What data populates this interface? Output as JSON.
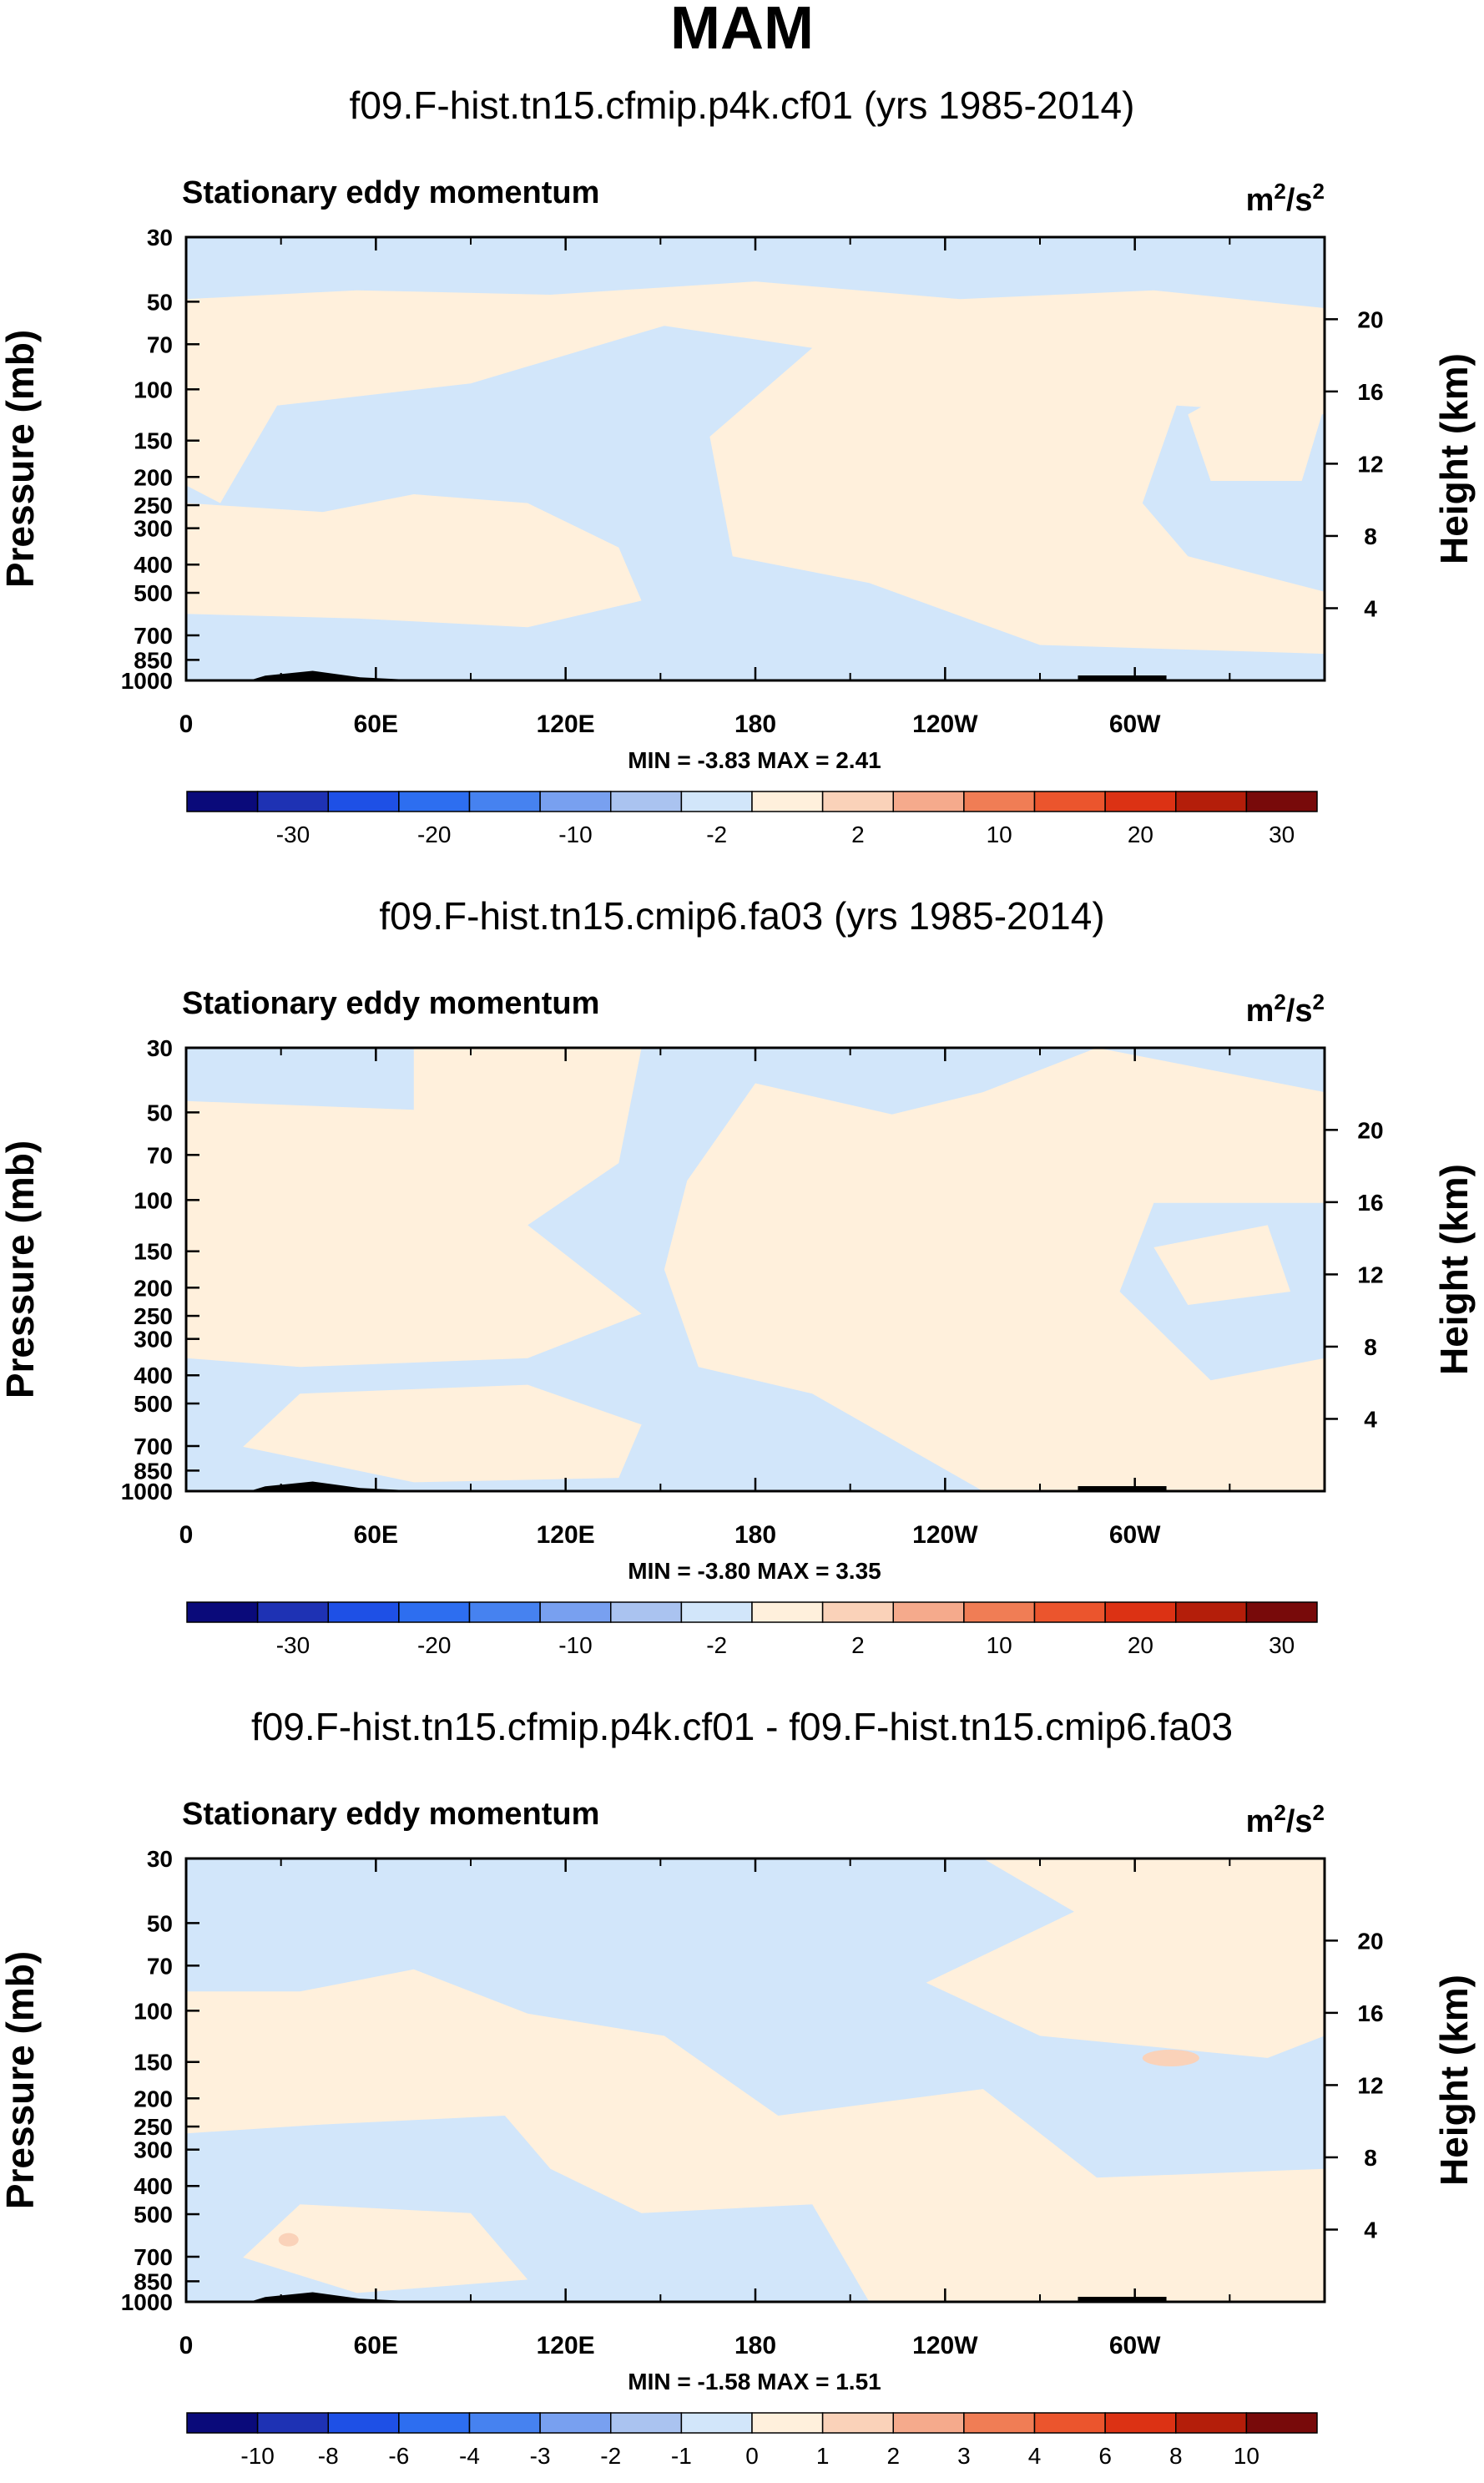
{
  "figure_title": "MAM",
  "chart_data": [
    {
      "type": "heatmap",
      "title": "f09.F-hist.tn15.cfmip.p4k.cf01 (yrs 1985-2014)",
      "left_label": "Stationary eddy momentum",
      "units_base": "m",
      "units_sup1": "2",
      "units_mid": "/s",
      "units_sup2": "2",
      "ylabel": "Pressure (mb)",
      "y2label": "Height (km)",
      "x_ticks": [
        {
          "lon": 0,
          "label": "0"
        },
        {
          "lon": 60,
          "label": "60E"
        },
        {
          "lon": 120,
          "label": "120E"
        },
        {
          "lon": 180,
          "label": "180"
        },
        {
          "lon": 240,
          "label": "120W"
        },
        {
          "lon": 300,
          "label": "60W"
        }
      ],
      "xlim": [
        0,
        360
      ],
      "y_ticks": [
        30,
        50,
        70,
        100,
        150,
        200,
        250,
        300,
        400,
        500,
        700,
        850,
        1000
      ],
      "ylim": [
        1000,
        30
      ],
      "y2_ticks": [
        4,
        8,
        12,
        16,
        20
      ],
      "stats": "MIN =  -3.83  MAX =   2.41",
      "colorbar": {
        "labels": [
          "-30",
          "-20",
          "-10",
          "-2",
          "2",
          "10",
          "20",
          "30"
        ],
        "colors": [
          "#0a0a7a",
          "#1e32b4",
          "#1e50e6",
          "#2d6ef0",
          "#4682f0",
          "#78a0f0",
          "#aac3f0",
          "#d2e6fa",
          "#fff0dc",
          "#fad2b9",
          "#f5aa8c",
          "#f07d55",
          "#eb552d",
          "#dc3214",
          "#b41e0a",
          "#780a0a"
        ]
      }
    },
    {
      "type": "heatmap",
      "title": "f09.F-hist.tn15.cmip6.fa03 (yrs 1985-2014)",
      "left_label": "Stationary eddy momentum",
      "units_base": "m",
      "units_sup1": "2",
      "units_mid": "/s",
      "units_sup2": "2",
      "ylabel": "Pressure (mb)",
      "y2label": "Height (km)",
      "x_ticks": [
        {
          "lon": 0,
          "label": "0"
        },
        {
          "lon": 60,
          "label": "60E"
        },
        {
          "lon": 120,
          "label": "120E"
        },
        {
          "lon": 180,
          "label": "180"
        },
        {
          "lon": 240,
          "label": "120W"
        },
        {
          "lon": 300,
          "label": "60W"
        }
      ],
      "xlim": [
        0,
        360
      ],
      "y_ticks": [
        30,
        50,
        70,
        100,
        150,
        200,
        250,
        300,
        400,
        500,
        700,
        850,
        1000
      ],
      "ylim": [
        1000,
        30
      ],
      "y2_ticks": [
        4,
        8,
        12,
        16,
        20
      ],
      "stats": "MIN =  -3.80  MAX =   3.35",
      "colorbar": {
        "labels": [
          "-30",
          "-20",
          "-10",
          "-2",
          "2",
          "10",
          "20",
          "30"
        ],
        "colors": [
          "#0a0a7a",
          "#1e32b4",
          "#1e50e6",
          "#2d6ef0",
          "#4682f0",
          "#78a0f0",
          "#aac3f0",
          "#d2e6fa",
          "#fff0dc",
          "#fad2b9",
          "#f5aa8c",
          "#f07d55",
          "#eb552d",
          "#dc3214",
          "#b41e0a",
          "#780a0a"
        ]
      }
    },
    {
      "type": "heatmap",
      "title": "f09.F-hist.tn15.cfmip.p4k.cf01 - f09.F-hist.tn15.cmip6.fa03",
      "left_label": "Stationary eddy momentum",
      "units_base": "m",
      "units_sup1": "2",
      "units_mid": "/s",
      "units_sup2": "2",
      "ylabel": "Pressure (mb)",
      "y2label": "Height (km)",
      "x_ticks": [
        {
          "lon": 0,
          "label": "0"
        },
        {
          "lon": 60,
          "label": "60E"
        },
        {
          "lon": 120,
          "label": "120E"
        },
        {
          "lon": 180,
          "label": "180"
        },
        {
          "lon": 240,
          "label": "120W"
        },
        {
          "lon": 300,
          "label": "60W"
        }
      ],
      "xlim": [
        0,
        360
      ],
      "y_ticks": [
        30,
        50,
        70,
        100,
        150,
        200,
        250,
        300,
        400,
        500,
        700,
        850,
        1000
      ],
      "ylim": [
        1000,
        30
      ],
      "y2_ticks": [
        4,
        8,
        12,
        16,
        20
      ],
      "stats": "MIN =  -1.58  MAX =   1.51",
      "colorbar": {
        "labels": [
          "-10",
          "-8",
          "-6",
          "-4",
          "-3",
          "-2",
          "-1",
          "0",
          "1",
          "2",
          "3",
          "4",
          "6",
          "8",
          "10"
        ],
        "colors": [
          "#0a0a7a",
          "#1e32b4",
          "#1e50e6",
          "#2d6ef0",
          "#4682f0",
          "#78a0f0",
          "#aac3f0",
          "#d2e6fa",
          "#fff0dc",
          "#fad2b9",
          "#f5aa8c",
          "#f07d55",
          "#eb552d",
          "#dc3214",
          "#b41e0a",
          "#780a0a"
        ]
      }
    }
  ]
}
